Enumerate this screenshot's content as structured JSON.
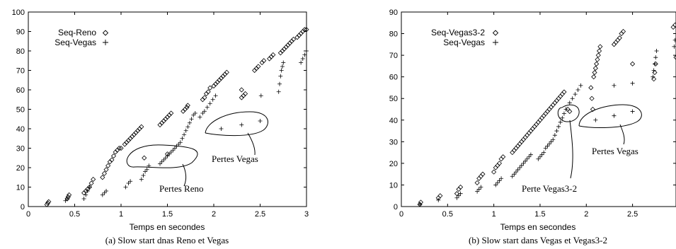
{
  "chart_data": [
    {
      "type": "scatter",
      "id": "a",
      "xlabel": "Temps en secondes",
      "ylabel": "",
      "xlim": [
        0,
        3
      ],
      "ylim": [
        0,
        100
      ],
      "xticks": [
        0,
        0.5,
        1,
        1.5,
        2,
        2.5,
        3
      ],
      "yticks": [
        0,
        10,
        20,
        30,
        40,
        50,
        60,
        70,
        80,
        90,
        100
      ],
      "legend_position": "top-left",
      "caption": "(a) Slow start dnas Reno et Vegas",
      "series": [
        {
          "name": "Seq-Reno",
          "marker": "diamond",
          "x": [
            0.2,
            0.21,
            0.22,
            0.42,
            0.43,
            0.44,
            0.6,
            0.62,
            0.64,
            0.66,
            0.68,
            0.7,
            0.8,
            0.82,
            0.84,
            0.86,
            0.88,
            0.9,
            0.92,
            0.94,
            0.96,
            0.98,
            1.0,
            1.04,
            1.06,
            1.08,
            1.1,
            1.12,
            1.14,
            1.16,
            1.18,
            1.2,
            1.22,
            1.25,
            1.5,
            1.42,
            1.44,
            1.46,
            1.48,
            1.5,
            1.52,
            1.54,
            1.67,
            1.69,
            1.71,
            1.72,
            1.88,
            1.9,
            1.92,
            1.94,
            1.96,
            2.0,
            2.02,
            2.04,
            2.06,
            2.08,
            2.1,
            2.12,
            2.14,
            2.3,
            2.3,
            2.32,
            2.34,
            2.44,
            2.46,
            2.48,
            2.52,
            2.54,
            2.6,
            2.62,
            2.64,
            2.72,
            2.74,
            2.76,
            2.78,
            2.8,
            2.82,
            2.84,
            2.86,
            2.9,
            2.92,
            2.94,
            2.96,
            2.98,
            3.0
          ],
          "y": [
            1,
            1.8,
            2.5,
            4,
            5,
            6,
            7,
            8,
            9,
            10,
            12,
            14,
            15,
            17,
            19,
            21,
            23,
            24,
            26,
            28,
            29,
            30,
            30,
            32,
            33,
            34,
            35,
            36,
            37,
            38,
            39,
            40,
            41,
            25,
            27,
            42,
            43,
            44,
            45,
            46,
            47,
            48,
            49,
            50,
            51,
            52,
            55,
            56,
            58,
            59,
            61,
            62,
            63,
            64,
            65,
            66,
            67,
            68,
            69,
            60,
            56,
            57,
            58,
            70,
            71,
            72,
            74,
            75,
            76,
            77,
            78,
            79,
            80,
            81,
            82,
            83,
            84,
            85,
            86,
            87,
            88,
            89,
            90,
            91,
            91
          ]
        },
        {
          "name": "Seq-Vegas",
          "marker": "plus",
          "x": [
            0.4,
            0.42,
            0.6,
            0.62,
            0.64,
            0.66,
            0.8,
            0.82,
            0.84,
            1.05,
            1.08,
            1.1,
            1.22,
            1.24,
            1.26,
            1.28,
            1.3,
            1.42,
            1.44,
            1.46,
            1.48,
            1.5,
            1.52,
            1.54,
            1.56,
            1.58,
            1.6,
            1.62,
            1.64,
            1.66,
            1.68,
            1.7,
            1.72,
            1.74,
            1.76,
            1.78,
            1.8,
            1.85,
            1.88,
            1.9,
            1.93,
            1.96,
            1.99,
            2.02,
            2.08,
            2.3,
            2.5,
            2.51,
            2.7,
            2.71,
            2.72,
            2.73,
            2.74,
            2.75,
            2.94,
            2.96,
            2.98,
            3.0
          ],
          "y": [
            3,
            4,
            4,
            6,
            8,
            10,
            6,
            7,
            8,
            10,
            12,
            13,
            14,
            16,
            18,
            19,
            21,
            22,
            23,
            24,
            25,
            26,
            27,
            28,
            29,
            30,
            31,
            32,
            33,
            35,
            37,
            39,
            41,
            43,
            45,
            47,
            48,
            46,
            48,
            49,
            51,
            53,
            55,
            57,
            40,
            42,
            44,
            57,
            59,
            63,
            67,
            70,
            72,
            74,
            74,
            76,
            78,
            80
          ]
        }
      ],
      "annotations": [
        "Pertes Reno",
        "Pertes Vegas"
      ]
    },
    {
      "type": "scatter",
      "id": "b",
      "xlabel": "Temps en secondes",
      "ylabel": "",
      "xlim": [
        0,
        2.97
      ],
      "ylim": [
        0,
        90
      ],
      "xticks": [
        0,
        0.5,
        1,
        1.5,
        2,
        2.5
      ],
      "yticks": [
        0,
        10,
        20,
        30,
        40,
        50,
        60,
        70,
        80,
        90
      ],
      "legend_position": "top-left",
      "caption": "(b) Slow start dans Vegas et Vegas3-2",
      "series": [
        {
          "name": "Seq-Vegas3-2",
          "marker": "diamond",
          "x": [
            0.2,
            0.21,
            0.4,
            0.42,
            0.6,
            0.62,
            0.64,
            0.82,
            0.84,
            0.86,
            0.88,
            1.0,
            1.02,
            1.04,
            1.06,
            1.08,
            1.1,
            1.2,
            1.22,
            1.24,
            1.26,
            1.28,
            1.3,
            1.32,
            1.34,
            1.36,
            1.38,
            1.4,
            1.42,
            1.44,
            1.46,
            1.48,
            1.5,
            1.52,
            1.54,
            1.56,
            1.58,
            1.6,
            1.62,
            1.64,
            1.66,
            1.68,
            1.7,
            1.72,
            1.74,
            1.76,
            1.8,
            1.82,
            2.08,
            2.09,
            2.1,
            2.11,
            2.12,
            2.13,
            2.14,
            2.15,
            2.05,
            2.06,
            2.07,
            2.3,
            2.32,
            2.34,
            2.36,
            2.38,
            2.4,
            2.5,
            2.73,
            2.74,
            2.75,
            2.94,
            2.96,
            2.97
          ],
          "y": [
            1,
            2,
            4,
            5,
            6,
            8,
            9,
            11,
            13,
            14,
            15,
            16,
            18,
            19,
            20,
            22,
            23,
            25,
            26,
            27,
            28,
            29,
            30,
            31,
            32,
            33,
            34,
            35,
            36,
            37,
            38,
            39,
            40,
            41,
            42,
            43,
            44,
            45,
            46,
            47,
            48,
            49,
            50,
            51,
            52,
            53,
            45,
            44,
            60,
            62,
            64,
            66,
            68,
            70,
            72,
            74,
            55,
            50,
            45,
            75,
            76,
            77,
            78,
            80,
            81,
            66,
            59,
            62,
            66,
            83,
            84,
            69
          ]
        },
        {
          "name": "Seq-Vegas",
          "marker": "plus",
          "x": [
            0.2,
            0.4,
            0.6,
            0.62,
            0.64,
            0.82,
            0.84,
            0.86,
            1.02,
            1.04,
            1.06,
            1.08,
            1.2,
            1.22,
            1.24,
            1.26,
            1.28,
            1.3,
            1.32,
            1.34,
            1.36,
            1.38,
            1.4,
            1.48,
            1.5,
            1.52,
            1.54,
            1.56,
            1.58,
            1.6,
            1.62,
            1.64,
            1.66,
            1.68,
            1.7,
            1.72,
            1.74,
            1.76,
            1.78,
            1.82,
            1.85,
            1.88,
            1.91,
            1.94,
            2.1,
            2.3,
            2.5,
            2.3,
            2.5,
            2.72,
            2.73,
            2.74,
            2.75,
            2.76,
            2.95,
            2.96,
            2.97
          ],
          "y": [
            1,
            3,
            4,
            5,
            6,
            7,
            8,
            9,
            10,
            11,
            12,
            13,
            14,
            15,
            16,
            17,
            18,
            19,
            20,
            21,
            22,
            23,
            24,
            22,
            23,
            24,
            25,
            27,
            28,
            29,
            30,
            31,
            33,
            35,
            37,
            39,
            41,
            43,
            45,
            48,
            50,
            52,
            54,
            56,
            40,
            42,
            44,
            56,
            57,
            60,
            63,
            66,
            69,
            72,
            74,
            77,
            80
          ]
        }
      ],
      "annotations": [
        "Perte Vegas3-2",
        "Pertes Vegas"
      ]
    }
  ]
}
